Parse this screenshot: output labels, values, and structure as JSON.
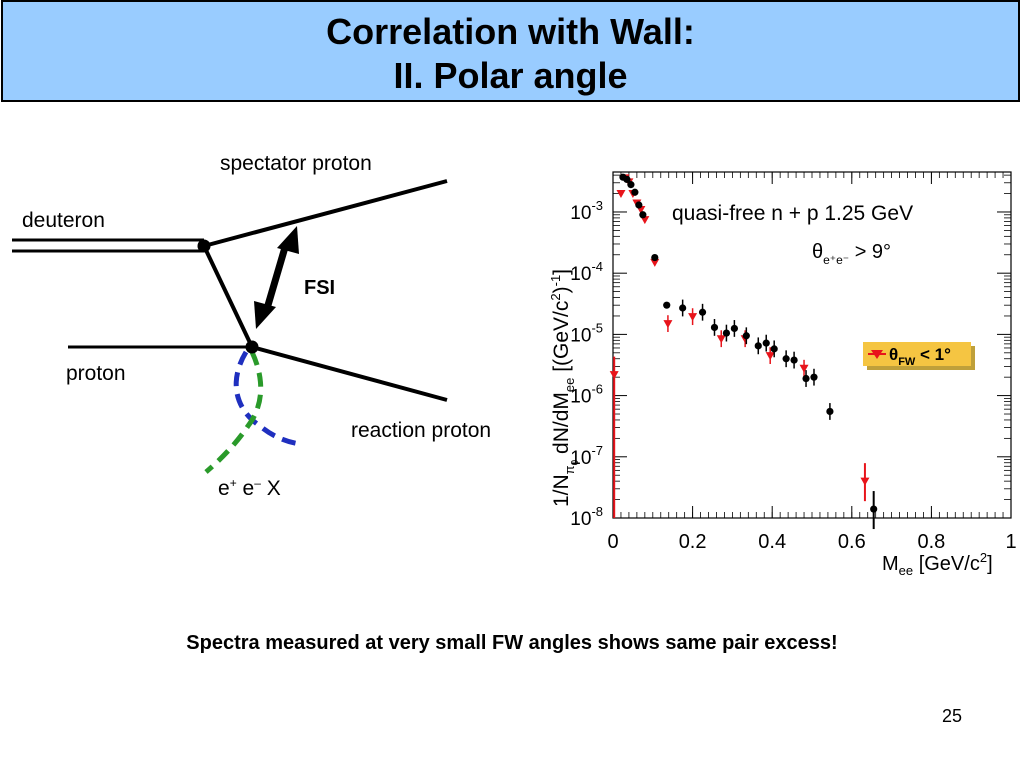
{
  "slide": {
    "title_line1": "Correlation with Wall:",
    "title_line2": "II. Polar angle",
    "conclusion": "Spectra measured at very small FW angles shows same pair excess!",
    "page_number": "25"
  },
  "diagram": {
    "spectator_label": "spectator proton",
    "deuteron_label": "deuteron",
    "fsi_label": "FSI",
    "proton_label": "proton",
    "reaction_label": "reaction proton",
    "ee_e1": "e",
    "ee_sup1": "+",
    "ee_e2": " e",
    "ee_sup2": "–",
    "ee_x": " X"
  },
  "chart_data": {
    "type": "scatter",
    "yscale": "log",
    "xlim": [
      0,
      1
    ],
    "ylim": [
      1e-08,
      0.0045
    ],
    "x_ticks": [
      "0",
      "0.2",
      "0.4",
      "0.6",
      "0.8",
      "1"
    ],
    "y_ticks": [
      {
        "base": "10",
        "exp": "-3",
        "value": 0.001
      },
      {
        "base": "10",
        "exp": "-4",
        "value": 0.0001
      },
      {
        "base": "10",
        "exp": "-5",
        "value": 1e-05
      },
      {
        "base": "10",
        "exp": "-6",
        "value": 1e-06
      },
      {
        "base": "10",
        "exp": "-7",
        "value": 1e-07
      },
      {
        "base": "10",
        "exp": "-8",
        "value": 1e-08
      }
    ],
    "xlabel": {
      "main": "M",
      "sub": "ee",
      "rest": " [GeV/c",
      "sup": "2",
      "end": "]"
    },
    "ylabel": "1/N_π0 dN/dM_ee [(GeV/c²)⁻¹]",
    "annotation": "quasi-free n + p 1.25 GeV",
    "cut": {
      "theta": "θ",
      "sub": "e⁺e⁻",
      "rest": " > 9°"
    },
    "legend": {
      "theta": "θ",
      "sub": "FW",
      "rest": " < 1°",
      "position": "right"
    },
    "colors": {
      "black_series": "#000000",
      "red_series": "#e8141b",
      "legend_bg": "#f5c542",
      "frame": "#000000"
    },
    "series": [
      {
        "color": "black",
        "marker": "circle",
        "points": [
          {
            "x": 0.025,
            "y": 0.0037
          },
          {
            "x": 0.035,
            "y": 0.0034
          },
          {
            "x": 0.045,
            "y": 0.0028
          },
          {
            "x": 0.055,
            "y": 0.0021
          },
          {
            "x": 0.065,
            "y": 0.0013
          },
          {
            "x": 0.075,
            "y": 0.0009
          },
          {
            "x": 0.105,
            "y": 0.00018
          },
          {
            "x": 0.135,
            "y": 3e-05
          },
          {
            "x": 0.175,
            "y": 2.7e-05
          },
          {
            "x": 0.225,
            "y": 2.3e-05
          },
          {
            "x": 0.255,
            "y": 1.3e-05
          },
          {
            "x": 0.285,
            "y": 1.05e-05
          },
          {
            "x": 0.305,
            "y": 1.25e-05
          },
          {
            "x": 0.335,
            "y": 9.5e-06
          },
          {
            "x": 0.365,
            "y": 6.5e-06
          },
          {
            "x": 0.385,
            "y": 7.2e-06
          },
          {
            "x": 0.405,
            "y": 5.8e-06
          },
          {
            "x": 0.435,
            "y": 4e-06
          },
          {
            "x": 0.455,
            "y": 3.8e-06
          },
          {
            "x": 0.485,
            "y": 1.9e-06
          },
          {
            "x": 0.505,
            "y": 2e-06
          },
          {
            "x": 0.545,
            "y": 5.5e-07
          },
          {
            "x": 0.655,
            "y": 1.4e-08
          }
        ]
      },
      {
        "color": "red",
        "marker": "triangle-down",
        "points": [
          {
            "x": 0.003,
            "y": 2.2e-06
          },
          {
            "x": 0.02,
            "y": 0.002
          },
          {
            "x": 0.03,
            "y": 0.0036
          },
          {
            "x": 0.04,
            "y": 0.0031
          },
          {
            "x": 0.05,
            "y": 0.002
          },
          {
            "x": 0.06,
            "y": 0.0014
          },
          {
            "x": 0.07,
            "y": 0.0011
          },
          {
            "x": 0.08,
            "y": 0.00075
          },
          {
            "x": 0.105,
            "y": 0.00015
          },
          {
            "x": 0.138,
            "y": 1.5e-05
          },
          {
            "x": 0.2,
            "y": 1.95e-05
          },
          {
            "x": 0.272,
            "y": 8.5e-06
          },
          {
            "x": 0.332,
            "y": 8.5e-06
          },
          {
            "x": 0.395,
            "y": 4.5e-06
          },
          {
            "x": 0.48,
            "y": 2.8e-06
          },
          {
            "x": 0.633,
            "y": 4e-08
          }
        ]
      }
    ]
  }
}
